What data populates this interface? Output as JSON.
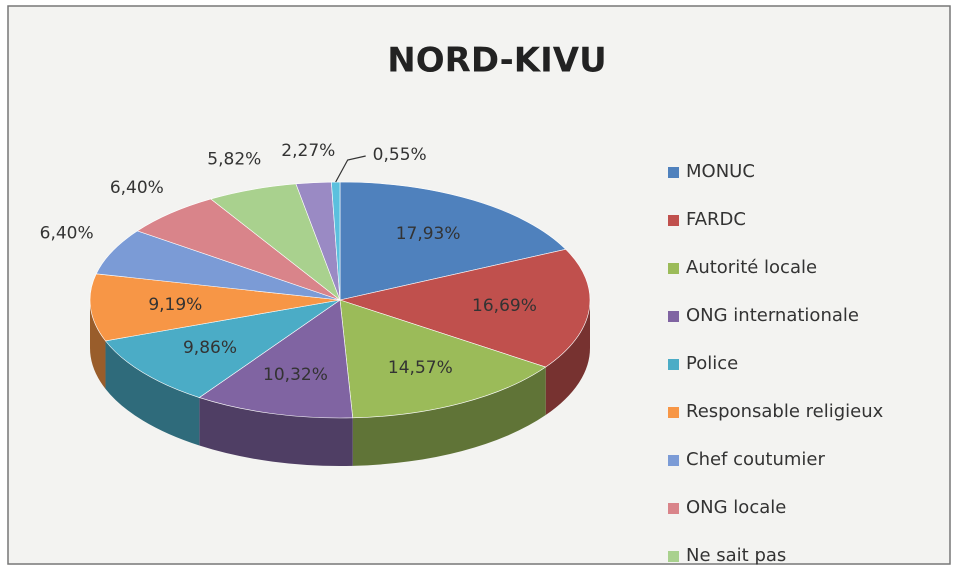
{
  "chart_data": {
    "type": "pie3d",
    "title": "NORD-KIVU",
    "categories": [
      "MONUC",
      "FARDC",
      "Autorité locale",
      "ONG internationale",
      "Police",
      "Responsable religieux",
      "Chef coutumier",
      "ONG locale",
      "Ne sait pas",
      null,
      null
    ],
    "values": [
      17.93,
      16.69,
      14.57,
      10.32,
      9.86,
      9.19,
      6.4,
      6.4,
      5.82,
      2.27,
      0.55
    ],
    "value_labels": [
      "17,93%",
      "16,69%",
      "14,57%",
      "10,32%",
      "9,86%",
      "9,19%",
      "6,40%",
      "6,40%",
      "5,82%",
      "2,27%",
      "0,55%"
    ],
    "colors": [
      "#4f81bd",
      "#c0504d",
      "#9bbb59",
      "#8064a2",
      "#4bacc6",
      "#f79646",
      "#7b9bd6",
      "#d9848a",
      "#a9d18e",
      "#9a8ac4",
      "#5bc0de"
    ],
    "legend": "right"
  }
}
